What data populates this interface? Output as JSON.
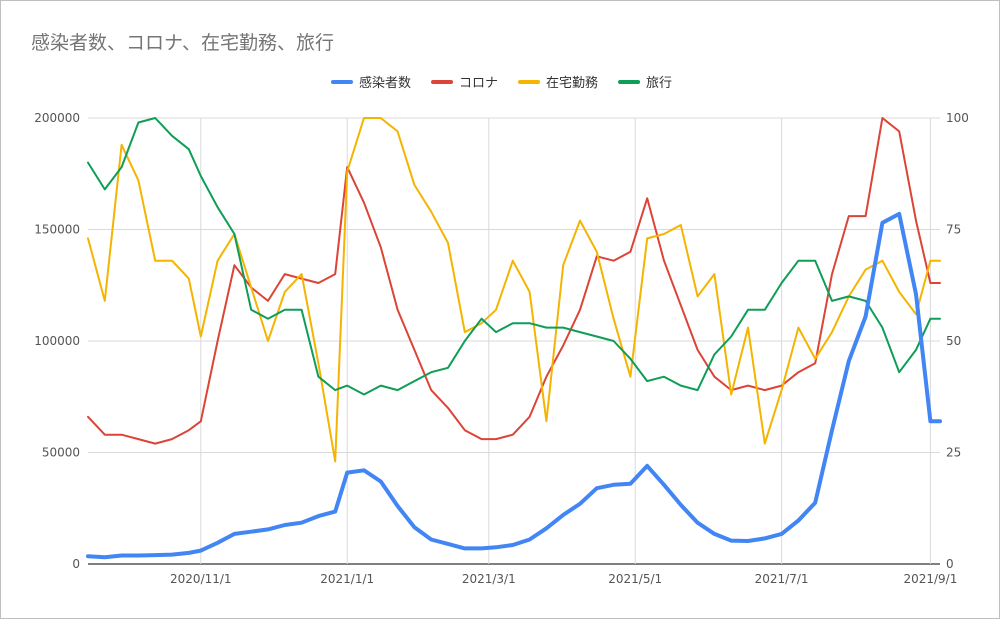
{
  "chart_data": {
    "type": "line",
    "title": "感染者数、コロナ、在宅勤務、旅行",
    "legend_position": "top",
    "grid": true,
    "x_axis": {
      "min": "2020-09-15",
      "max": "2021-09-05",
      "tick_values": [
        "2020-11-01",
        "2021-01-01",
        "2021-03-01",
        "2021-05-01",
        "2021-07-01",
        "2021-09-01"
      ],
      "tick_labels": [
        "2020/11/1",
        "2021/1/1",
        "2021/3/1",
        "2021/5/1",
        "2021/7/1",
        "2021/9/1"
      ]
    },
    "y_left": {
      "min": 0,
      "max": 200000,
      "ticks": [
        0,
        50000,
        100000,
        150000,
        200000
      ]
    },
    "y_right": {
      "min": 0,
      "max": 100,
      "ticks": [
        0,
        25,
        50,
        75,
        100
      ]
    },
    "x": [
      "2020-09-15",
      "2020-09-22",
      "2020-09-29",
      "2020-10-06",
      "2020-10-13",
      "2020-10-20",
      "2020-10-27",
      "2020-11-01",
      "2020-11-08",
      "2020-11-15",
      "2020-11-22",
      "2020-11-29",
      "2020-12-06",
      "2020-12-13",
      "2020-12-20",
      "2020-12-27",
      "2021-01-01",
      "2021-01-08",
      "2021-01-15",
      "2021-01-22",
      "2021-01-29",
      "2021-02-05",
      "2021-02-12",
      "2021-02-19",
      "2021-02-26",
      "2021-03-04",
      "2021-03-11",
      "2021-03-18",
      "2021-03-25",
      "2021-04-01",
      "2021-04-08",
      "2021-04-15",
      "2021-04-22",
      "2021-04-29",
      "2021-05-06",
      "2021-05-13",
      "2021-05-20",
      "2021-05-27",
      "2021-06-03",
      "2021-06-10",
      "2021-06-17",
      "2021-06-24",
      "2021-07-01",
      "2021-07-08",
      "2021-07-15",
      "2021-07-22",
      "2021-07-29",
      "2021-08-05",
      "2021-08-12",
      "2021-08-19",
      "2021-08-26",
      "2021-09-01",
      "2021-09-05"
    ],
    "series": [
      {
        "name": "感染者数",
        "axis": "left",
        "color": "#4285f4",
        "values": [
          3500,
          3000,
          3800,
          3800,
          4000,
          4200,
          5000,
          6000,
          9500,
          13500,
          14500,
          15500,
          17500,
          18500,
          21500,
          23500,
          41000,
          42000,
          37000,
          26000,
          16500,
          11000,
          9000,
          7000,
          7000,
          7500,
          8500,
          11000,
          16000,
          22000,
          27000,
          34000,
          35500,
          36000,
          44000,
          35500,
          26500,
          18500,
          13500,
          10500,
          10300,
          11500,
          13500,
          19500,
          27500,
          60000,
          91000,
          111000,
          153000,
          157000,
          121000,
          64000,
          64000
        ]
      },
      {
        "name": "コロナ",
        "axis": "right",
        "color": "#db4437",
        "values": [
          33,
          29,
          29,
          28,
          27,
          28,
          30,
          32,
          50,
          67,
          62,
          59,
          65,
          64,
          63,
          65,
          89,
          81,
          71,
          57,
          48,
          39,
          35,
          30,
          28,
          28,
          29,
          33,
          42,
          49,
          57,
          69,
          68,
          70,
          82,
          68,
          58,
          48,
          42,
          39,
          40,
          39,
          40,
          43,
          45,
          65,
          78,
          78,
          100,
          97,
          77,
          63,
          63
        ]
      },
      {
        "name": "在宅勤務",
        "axis": "right",
        "color": "#f4b400",
        "values": [
          73,
          59,
          94,
          86,
          68,
          68,
          64,
          51,
          68,
          74,
          62,
          50,
          61,
          65,
          45,
          23,
          88,
          100,
          100,
          97,
          85,
          79,
          72,
          52,
          54,
          57,
          68,
          61,
          32,
          67,
          77,
          70,
          55,
          42,
          73,
          74,
          76,
          60,
          65,
          38,
          53,
          27,
          39,
          53,
          46,
          52,
          60,
          66,
          68,
          61,
          56,
          68,
          68
        ]
      },
      {
        "name": "旅行",
        "axis": "right",
        "color": "#0f9d58",
        "values": [
          90,
          84,
          89,
          99,
          100,
          96,
          93,
          87,
          80,
          74,
          57,
          55,
          57,
          57,
          42,
          39,
          40,
          38,
          40,
          39,
          41,
          43,
          44,
          50,
          55,
          52,
          54,
          54,
          53,
          53,
          52,
          51,
          50,
          46,
          41,
          42,
          40,
          39,
          47,
          51,
          57,
          57,
          63,
          68,
          68,
          59,
          60,
          59,
          53,
          43,
          48,
          55,
          55
        ]
      }
    ]
  }
}
